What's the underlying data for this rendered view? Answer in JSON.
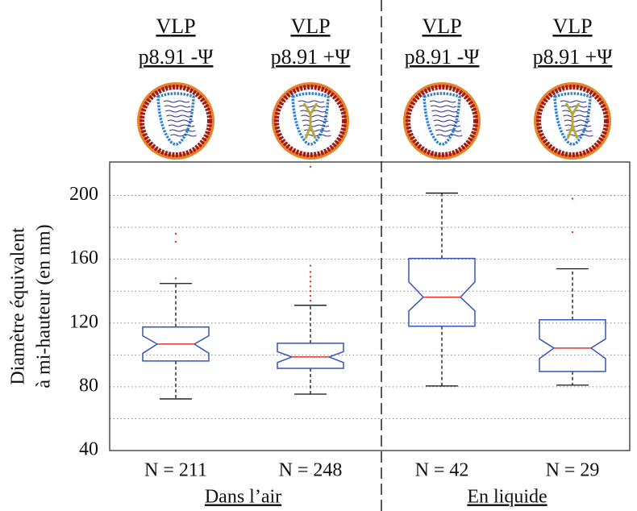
{
  "chart_data": {
    "type": "box",
    "category_lines": [
      [
        "VLP",
        "p8.91 -Ψ"
      ],
      [
        "VLP",
        "p8.91 +Ψ"
      ],
      [
        "VLP",
        "p8.91 -Ψ"
      ],
      [
        "VLP",
        "p8.91 +Ψ"
      ]
    ],
    "n_labels": [
      "N = 211",
      "N = 248",
      "N = 42",
      "N = 29"
    ],
    "groups": [
      "Dans l’air",
      "En liquide"
    ],
    "y_label_lines": [
      "Diamètre équivalent",
      "à mi-hauteur (en nm)"
    ],
    "ylim": [
      40,
      221
    ],
    "yticks": [
      40,
      80,
      120,
      160,
      200
    ],
    "minor_grid_yticks": [
      60,
      100,
      140,
      180
    ],
    "grid": true,
    "box_color": "#3355bb",
    "median_color": "#e8302a",
    "outlier_color": "#e8302a",
    "boxes": [
      {
        "whisker_low": 72.4,
        "q1": 96.2,
        "notch_low": 101,
        "median": 106.8,
        "notch_high": 112,
        "q3": 117.5,
        "whisker_high": 144.8,
        "outliers": [
          176,
          171,
          148
        ]
      },
      {
        "whisker_low": 75.4,
        "q1": 91.6,
        "notch_low": 95.2,
        "median": 98.7,
        "notch_high": 102,
        "q3": 107.3,
        "whisker_high": 131.1,
        "outliers": [
          156,
          152,
          149,
          146,
          143,
          140,
          137,
          134,
          218
        ]
      },
      {
        "whisker_low": 80.5,
        "q1": 118,
        "notch_low": 127.6,
        "median": 136.2,
        "notch_high": 145.8,
        "q3": 160.5,
        "whisker_high": 201.5,
        "outliers": []
      },
      {
        "whisker_low": 81,
        "q1": 89.6,
        "notch_low": 97.7,
        "median": 104.3,
        "notch_high": 110,
        "q3": 122,
        "whisker_high": 154,
        "outliers": [
          198,
          177
        ]
      }
    ]
  }
}
